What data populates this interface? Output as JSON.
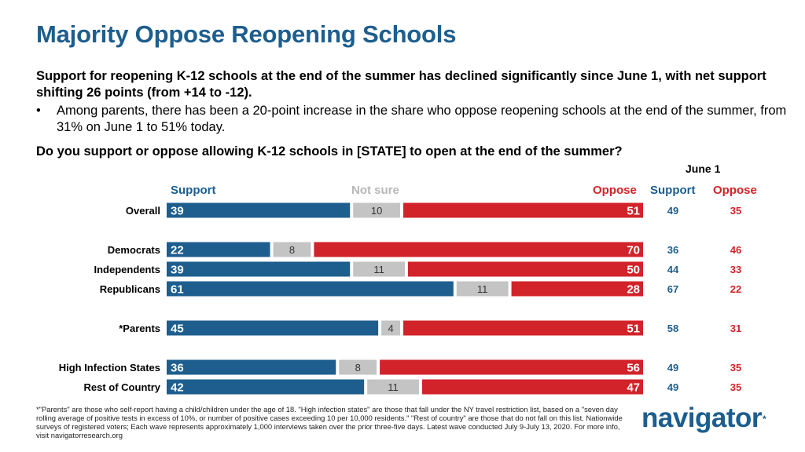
{
  "title": "Majority Oppose Reopening Schools",
  "lead": "Support for reopening K-12 schools at the end of the summer has declined significantly since June 1, with net support shifting 26 points (from +14 to -12).",
  "bullet": "Among parents, there has been a 20-point increase in the share who oppose reopening schools at the end of the summer, from 31% on June 1 to 51% today.",
  "bullet_glyph": "•",
  "question": "Do you support or oppose allowing K-12 schools in [STATE] to open at the end of the summer?",
  "june_header": "June 1",
  "legend": {
    "support": "Support",
    "not_sure": "Not sure",
    "oppose": "Oppose"
  },
  "june_columns": {
    "support": "Support",
    "oppose": "Oppose"
  },
  "colors": {
    "support": "#1d5e8e",
    "not_sure": "#c4c4c4",
    "oppose": "#d2232a",
    "title": "#1d5e8e"
  },
  "chart_data": {
    "type": "bar",
    "stacked": true,
    "orientation": "horizontal",
    "xlim": [
      0,
      100
    ],
    "categories": [
      "Overall",
      "Democrats",
      "Independents",
      "Republicans",
      "*Parents",
      "High Infection States",
      "Rest of Country"
    ],
    "series": [
      {
        "name": "Support",
        "values": [
          39,
          22,
          39,
          61,
          45,
          36,
          42
        ]
      },
      {
        "name": "Not sure",
        "values": [
          10,
          8,
          11,
          11,
          4,
          8,
          11
        ]
      },
      {
        "name": "Oppose",
        "values": [
          51,
          70,
          50,
          28,
          51,
          56,
          47
        ]
      }
    ],
    "june1": {
      "support": [
        49,
        36,
        44,
        67,
        58,
        49,
        49
      ],
      "oppose": [
        35,
        46,
        33,
        22,
        31,
        35,
        35
      ]
    }
  },
  "footnote": "*\"Parents\" are those who self-report having a child/children under the age of 18. \"High infection states\" are those that fall under the NY travel restriction list, based on a \"seven day rolling average of positive tests in excess of 10%, or number of positive cases exceeding 10 per 10,000 residents.\" \"Rest of country\" are those that do not fall on this list. Nationwide surveys of registered voters; Each wave represents approximately 1,000 interviews taken over the prior three-five days. Latest wave conducted July 9-July 13, 2020. For more info, visit navigatorresearch.org",
  "logo": {
    "text": "navigator",
    "mark": "*"
  }
}
